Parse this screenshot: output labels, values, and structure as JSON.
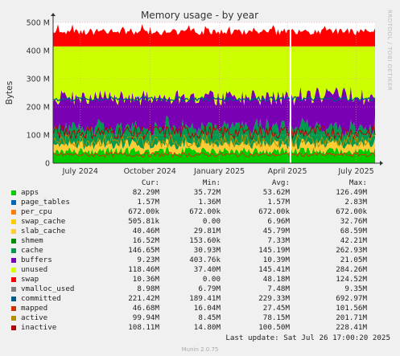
{
  "chart_data": {
    "type": "area",
    "title": "Memory usage - by year",
    "ylabel": "Bytes",
    "ylim": [
      0,
      500
    ],
    "y_unit": "M",
    "y_ticks": [
      "0",
      "100 M",
      "200 M",
      "300 M",
      "400 M",
      "500 M"
    ],
    "y_tick_values": [
      0,
      100,
      200,
      300,
      400,
      500
    ],
    "x_ticks": [
      "July 2024",
      "October 2024",
      "January 2025",
      "April 2025",
      "July 2025"
    ],
    "xlim": [
      "2024-05-26",
      "2025-07-26"
    ],
    "x_tick_dates": [
      "2024-07-01",
      "2024-10-01",
      "2025-01-01",
      "2025-04-01",
      "2025-07-01"
    ],
    "grid": true,
    "legend_columns": [
      "Cur:",
      "Min:",
      "Avg:",
      "Max:"
    ],
    "series": [
      {
        "name": "apps",
        "color": "#00cc00",
        "cur": "82.29M",
        "min": "35.72M",
        "avg": "53.62M",
        "max": "126.49M"
      },
      {
        "name": "page_tables",
        "color": "#0066b3",
        "cur": "1.57M",
        "min": "1.36M",
        "avg": "1.57M",
        "max": "2.83M"
      },
      {
        "name": "per_cpu",
        "color": "#ff8000",
        "cur": "672.00k",
        "min": "672.00k",
        "avg": "672.00k",
        "max": "672.00k"
      },
      {
        "name": "swap_cache",
        "color": "#ffcc00",
        "cur": "505.81k",
        "min": "0.00",
        "avg": "6.96M",
        "max": "32.76M"
      },
      {
        "name": "slab_cache",
        "color": "#ffcc33",
        "cur": "40.46M",
        "min": "29.81M",
        "avg": "45.79M",
        "max": "68.59M"
      },
      {
        "name": "shmem",
        "color": "#008f00",
        "cur": "16.52M",
        "min": "153.60k",
        "avg": "7.33M",
        "max": "42.21M"
      },
      {
        "name": "cache",
        "color": "#00994d",
        "cur": "146.65M",
        "min": "30.93M",
        "avg": "145.19M",
        "max": "262.93M"
      },
      {
        "name": "buffers",
        "color": "#7a00b3",
        "cur": "9.23M",
        "min": "403.76k",
        "avg": "10.39M",
        "max": "21.05M"
      },
      {
        "name": "unused",
        "color": "#ccff00",
        "cur": "118.46M",
        "min": "37.40M",
        "avg": "145.41M",
        "max": "284.26M"
      },
      {
        "name": "swap",
        "color": "#ff0000",
        "cur": "10.36M",
        "min": "0.00",
        "avg": "48.18M",
        "max": "124.52M"
      },
      {
        "name": "vmalloc_used",
        "color": "#808080",
        "cur": "8.98M",
        "min": "6.79M",
        "avg": "7.48M",
        "max": "9.35M"
      },
      {
        "name": "committed",
        "color": "#005a8a",
        "cur": "221.42M",
        "min": "189.41M",
        "avg": "229.33M",
        "max": "692.97M"
      },
      {
        "name": "mapped",
        "color": "#cc3300",
        "cur": "46.68M",
        "min": "16.04M",
        "avg": "27.45M",
        "max": "101.56M"
      },
      {
        "name": "active",
        "color": "#b38f00",
        "cur": "99.94M",
        "min": "8.45M",
        "avg": "78.15M",
        "max": "201.71M"
      },
      {
        "name": "inactive",
        "color": "#b30000",
        "cur": "108.11M",
        "min": "14.80M",
        "avg": "100.50M",
        "max": "228.41M"
      }
    ]
  },
  "footer": {
    "last_update": "Last update: Sat Jul 26 17:00:20 2025",
    "munin": "Munin 2.0.75",
    "side_label": "RRDTOOL / TOBI OETIKER"
  }
}
